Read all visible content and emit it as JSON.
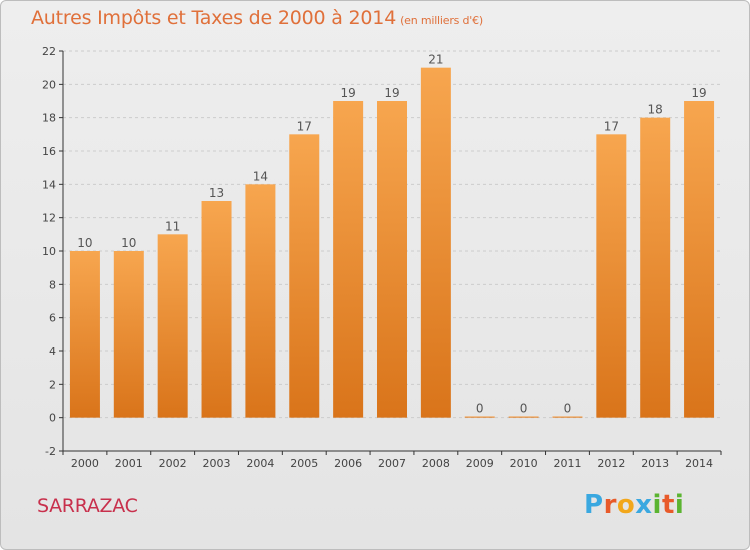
{
  "header": {
    "title": "Autres Impôts et Taxes de 2000 à 2014",
    "subtitle": "(en milliers d'€)"
  },
  "footer": {
    "city": "SARRAZAC",
    "brand_letters": [
      "P",
      "r",
      "o",
      "x",
      "i",
      "t",
      "i"
    ],
    "brand_colors": [
      "#3aa8e0",
      "#e85a2a",
      "#f2a71b",
      "#3aa8e0",
      "#5bb431",
      "#e85a2a",
      "#5bb431"
    ]
  },
  "chart_data": {
    "type": "bar",
    "title": "Autres Impôts et Taxes de 2000 à 2014",
    "subtitle": "(en milliers d'€)",
    "categories": [
      "2000",
      "2001",
      "2002",
      "2003",
      "2004",
      "2005",
      "2006",
      "2007",
      "2008",
      "2009",
      "2010",
      "2011",
      "2012",
      "2013",
      "2014"
    ],
    "values": [
      10,
      10,
      11,
      13,
      14,
      17,
      19,
      19,
      21,
      0,
      0,
      0,
      17,
      18,
      19
    ],
    "ylim": [
      -2,
      22
    ],
    "yticks": [
      -2,
      0,
      2,
      4,
      6,
      8,
      10,
      12,
      14,
      16,
      18,
      20,
      22
    ],
    "grid": true,
    "colors": {
      "bar_light": "#f7a64f",
      "bar_dark": "#d9741a",
      "axis": "#333333",
      "grid": "#cccccc"
    }
  }
}
